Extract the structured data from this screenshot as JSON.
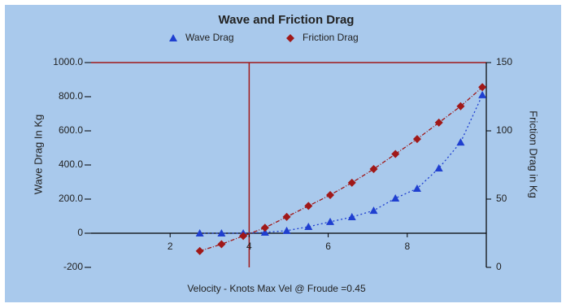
{
  "chart_data": {
    "type": "line",
    "title": "Wave and Friction Drag",
    "x_label": "Velocity - Knots    Max Vel @ Froude =0.45",
    "y_label": "Wave Drag In Kg",
    "y2_label": "Friction Drag in Kg",
    "x": [
      2.75,
      3.3,
      3.85,
      4.4,
      4.95,
      5.5,
      6.05,
      6.6,
      7.15,
      7.7,
      8.25,
      8.8,
      9.35,
      9.9
    ],
    "series": [
      {
        "name": "Wave Drag",
        "color": "#1f3fd0",
        "marker": "triangle",
        "axis": "y",
        "values": [
          0,
          0,
          0,
          5,
          15,
          38,
          67,
          95,
          133,
          205,
          262,
          381,
          533,
          810
        ]
      },
      {
        "name": "Friction Drag",
        "color": "#a01818",
        "marker": "diamond",
        "axis": "y2",
        "values": [
          12,
          17,
          23,
          29,
          37,
          45,
          53,
          62,
          72,
          83,
          94,
          106,
          118,
          132
        ]
      }
    ],
    "xlim": [
      0,
      10
    ],
    "xticks": [
      2,
      4,
      6,
      8
    ],
    "ylim": [
      -200,
      1000
    ],
    "yticks": [
      -200,
      0,
      {
        "value": 200,
        "label": "200.0"
      },
      {
        "value": 400,
        "label": "400.0"
      },
      {
        "value": 600,
        "label": "600.0"
      },
      {
        "value": 800,
        "label": "800.0"
      },
      {
        "value": 1000,
        "label": "1000.0"
      }
    ],
    "y2lim": [
      0,
      150
    ],
    "y2ticks": [
      0,
      50,
      100,
      150
    ],
    "vline": 4,
    "background": "#a9c9ec"
  }
}
